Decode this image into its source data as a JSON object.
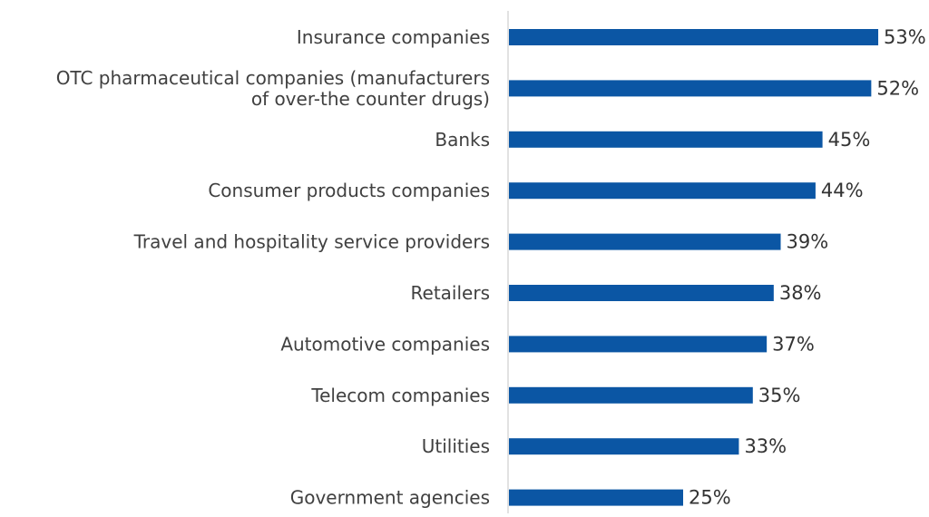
{
  "chart_data": {
    "type": "bar",
    "orientation": "horizontal",
    "categories": [
      [
        "Insurance companies"
      ],
      [
        "OTC pharmaceutical companies (manufacturers",
        "of over-the counter drugs)"
      ],
      [
        "Banks"
      ],
      [
        "Consumer products companies"
      ],
      [
        "Travel and hospitality service providers"
      ],
      [
        "Retailers"
      ],
      [
        "Automotive companies"
      ],
      [
        "Telecom companies"
      ],
      [
        "Utilities"
      ],
      [
        "Government agencies"
      ]
    ],
    "values": [
      53,
      52,
      45,
      44,
      39,
      38,
      37,
      35,
      33,
      25
    ],
    "value_labels": [
      "53%",
      "52%",
      "45%",
      "44%",
      "39%",
      "38%",
      "37%",
      "35%",
      "33%",
      "25%"
    ],
    "xlim": [
      0,
      53
    ],
    "grid": false,
    "legend": "none",
    "colors": {
      "bar": "#0B56A4",
      "axis": "#D9D9D9",
      "label": "#404040",
      "value": "#333333"
    }
  }
}
